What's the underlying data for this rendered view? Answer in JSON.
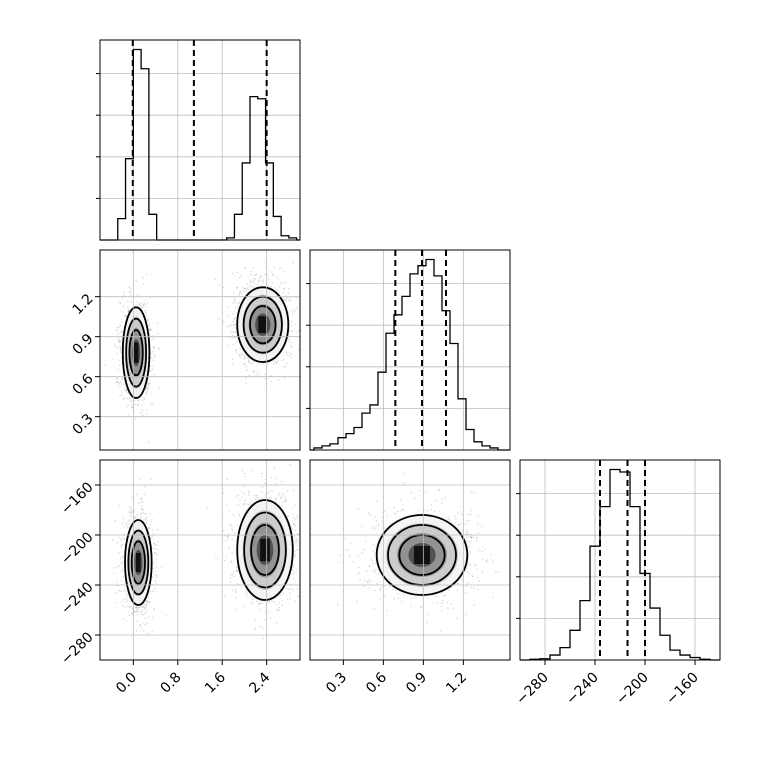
{
  "chart_data": {
    "type": "corner",
    "grid": true,
    "panels": [
      {
        "id": "hist-0",
        "type": "histogram",
        "xlim": [
          -0.6,
          3.0
        ],
        "bin_edges": [
          -0.56,
          -0.42,
          -0.28,
          -0.14,
          0.0,
          0.14,
          0.28,
          0.42,
          0.56,
          0.7,
          0.84,
          0.98,
          1.12,
          1.26,
          1.4,
          1.54,
          1.68,
          1.82,
          1.96,
          2.1,
          2.24,
          2.38,
          2.52,
          2.66,
          2.8,
          2.94
        ],
        "counts": [
          0,
          0,
          0.1,
          0.38,
          0.89,
          0.8,
          0.12,
          0.0,
          0,
          0,
          0,
          0,
          0,
          0,
          0,
          0,
          0.01,
          0.12,
          0.36,
          0.67,
          0.66,
          0.36,
          0.11,
          0.02,
          0.01
        ],
        "quantiles": [
          -0.01,
          1.09,
          2.4
        ]
      },
      {
        "id": "hist-1",
        "type": "histogram",
        "xlim": [
          0.05,
          1.55
        ],
        "bin_edges": [
          0.08,
          0.14,
          0.2,
          0.26,
          0.32,
          0.38,
          0.44,
          0.5,
          0.56,
          0.62,
          0.68,
          0.74,
          0.8,
          0.86,
          0.92,
          0.98,
          1.04,
          1.1,
          1.16,
          1.22,
          1.28,
          1.34,
          1.4,
          1.46
        ],
        "counts": [
          0.01,
          0.02,
          0.03,
          0.06,
          0.08,
          0.11,
          0.18,
          0.22,
          0.38,
          0.57,
          0.66,
          0.75,
          0.86,
          0.9,
          0.93,
          0.85,
          0.68,
          0.52,
          0.25,
          0.1,
          0.04,
          0.02,
          0.01
        ],
        "quantiles": [
          0.69,
          0.89,
          1.07
        ]
      },
      {
        "id": "hist-2",
        "type": "histogram",
        "xlim": [
          -300,
          -140
        ],
        "bin_edges": [
          -292,
          -284,
          -276,
          -268,
          -260,
          -252,
          -244,
          -236,
          -228,
          -220,
          -212,
          -204,
          -196,
          -188,
          -180,
          -172,
          -164,
          -156,
          -148
        ],
        "counts": [
          0.003,
          0.005,
          0.02,
          0.05,
          0.12,
          0.24,
          0.46,
          0.62,
          0.77,
          0.76,
          0.62,
          0.35,
          0.21,
          0.1,
          0.04,
          0.02,
          0.01,
          0.003
        ],
        "quantiles": [
          -236,
          -214,
          -200
        ]
      },
      {
        "id": "scatter-1-0",
        "type": "2d-density",
        "xlim": [
          -0.6,
          3.0
        ],
        "ylim": [
          0.05,
          1.55
        ],
        "clusters": [
          {
            "center": [
              0.05,
              0.78
            ],
            "spread": [
              0.12,
              0.17
            ]
          },
          {
            "center": [
              2.33,
              0.99
            ],
            "spread": [
              0.23,
              0.14
            ]
          }
        ]
      },
      {
        "id": "scatter-2-0",
        "type": "2d-density",
        "xlim": [
          -0.6,
          3.0
        ],
        "ylim": [
          -300,
          -140
        ],
        "clusters": [
          {
            "center": [
              0.09,
              -222
            ],
            "spread": [
              0.12,
              17
            ]
          },
          {
            "center": [
              2.37,
              -212
            ],
            "spread": [
              0.25,
              20
            ]
          }
        ]
      },
      {
        "id": "scatter-2-1",
        "type": "2d-density",
        "xlim": [
          0.05,
          1.55
        ],
        "ylim": [
          -300,
          -140
        ],
        "clusters": [
          {
            "center": [
              0.89,
              -216
            ],
            "spread": [
              0.17,
              16
            ]
          }
        ]
      }
    ],
    "ticks": {
      "x0": [
        "0.0",
        "0.8",
        "1.6",
        "2.4"
      ],
      "x1": [
        "0.3",
        "0.6",
        "0.9",
        "1.2"
      ],
      "x2": [
        "−280",
        "−240",
        "−200",
        "−160"
      ],
      "y1": [
        "1.2",
        "0.9",
        "0.6",
        "0.3"
      ],
      "y2": [
        "−160",
        "−200",
        "−240",
        "−280"
      ]
    }
  }
}
